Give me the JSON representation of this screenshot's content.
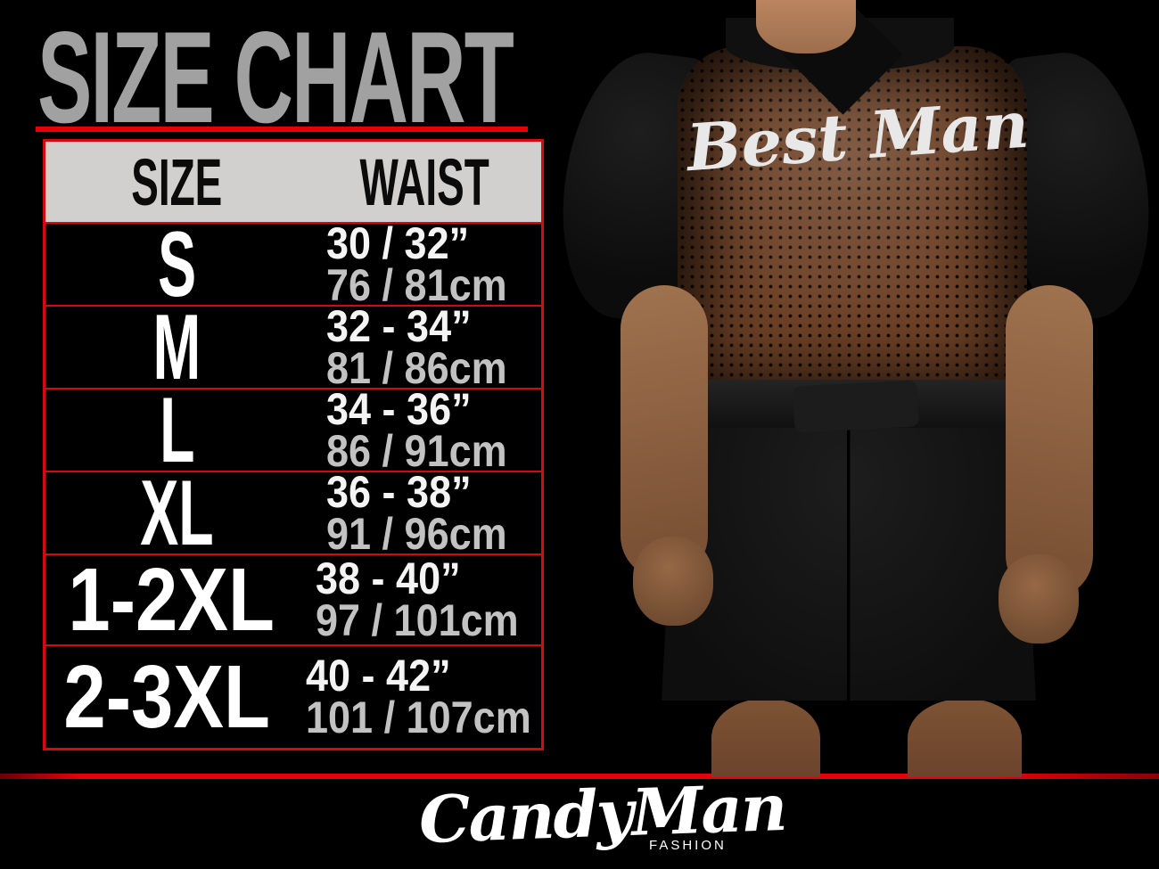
{
  "title": "SIZE CHART",
  "size_table": {
    "header": {
      "size": "SIZE",
      "waist": "WAIST"
    },
    "rows": [
      {
        "size": "S",
        "inches": "30 / 32”",
        "cm": "76 / 81cm"
      },
      {
        "size": "M",
        "inches": "32 - 34”",
        "cm": "81 / 86cm"
      },
      {
        "size": "L",
        "inches": "34 - 36”",
        "cm": "86 / 91cm"
      },
      {
        "size": "XL",
        "inches": "36 - 38”",
        "cm": "91 / 96cm"
      },
      {
        "size": "1-2XL",
        "inches": "38 - 40”",
        "cm": "97 / 101cm"
      },
      {
        "size": "2-3XL",
        "inches": "40 - 42”",
        "cm": "101 / 107cm"
      }
    ]
  },
  "photo": {
    "description": "back view of man wearing black robe with sheer mesh back panel",
    "garment_back_text": "Best Man"
  },
  "footer": {
    "brand": "CandyMan",
    "brand_tagline": "FASHION"
  },
  "colors": {
    "background": "#000000",
    "accent_red": "#e60008",
    "title_gray": "#a1a1a1",
    "header_bg": "#d2cfcf",
    "header_text": "#0b0b0b",
    "size_text": "#ffffff",
    "inches_text": "#f4f4f4",
    "cm_text": "#c2c2c2"
  },
  "chart_data": {
    "type": "table",
    "title": "SIZE CHART",
    "columns": [
      "SIZE",
      "WAIST (inches)",
      "WAIST (cm)"
    ],
    "rows": [
      [
        "S",
        "30 / 32”",
        "76 / 81cm"
      ],
      [
        "M",
        "32 - 34”",
        "81 / 86cm"
      ],
      [
        "L",
        "34 - 36”",
        "86 / 91cm"
      ],
      [
        "XL",
        "36 - 38”",
        "91 / 96cm"
      ],
      [
        "1-2XL",
        "38 - 40”",
        "97 / 101cm"
      ],
      [
        "2-3XL",
        "40 - 42”",
        "101 / 107cm"
      ]
    ]
  }
}
